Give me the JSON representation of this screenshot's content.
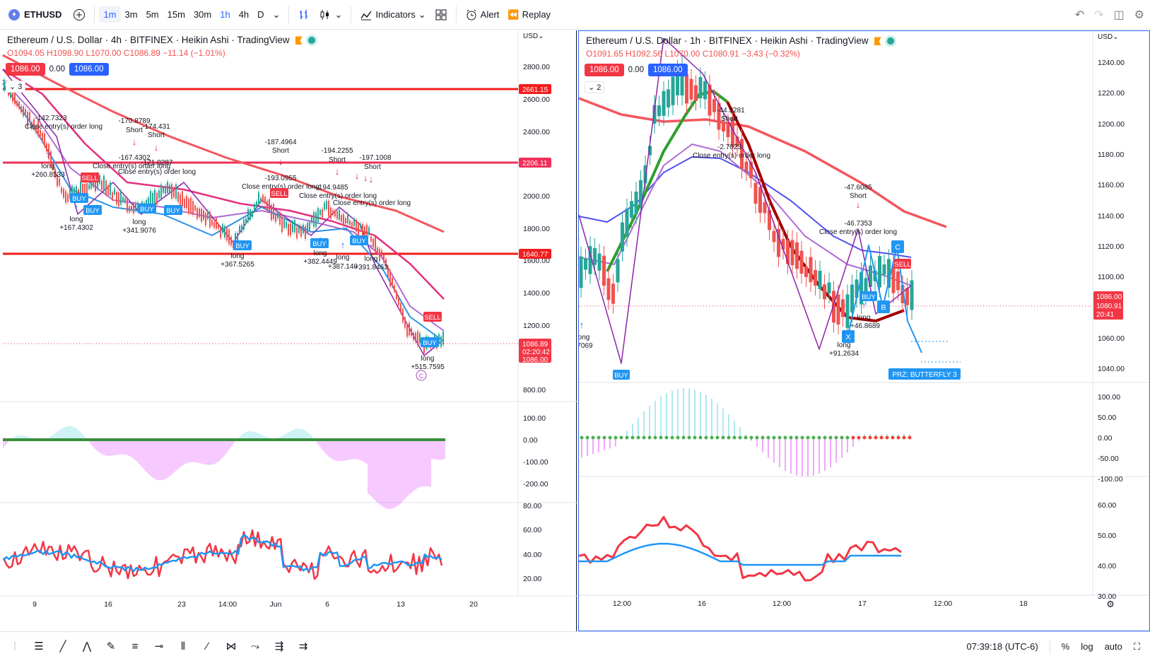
{
  "toolbar": {
    "symbol": "ETHUSD",
    "intervals": [
      "1m",
      "3m",
      "5m",
      "15m",
      "30m",
      "1h",
      "4h",
      "D"
    ],
    "active_intervals": [
      "1m",
      "1h"
    ],
    "indicators_label": "Indicators",
    "alert_label": "Alert",
    "replay_label": "Replay"
  },
  "left": {
    "title": "Ethereum / U.S. Dollar · 4h · BITFINEX · Heikin Ashi · TradingView",
    "ohlc": "O1094.05 H1098.90 L1070.00 C1086.89 −11.14 (−1.01%)",
    "sell_price": "1086.00",
    "spread": "0.00",
    "buy_price": "1086.00",
    "collapse_count": "3",
    "currency": "USD",
    "price_ticks": [
      "2800.00",
      "2600.00",
      "2400.00",
      "2200.00",
      "2000.00",
      "1800.00",
      "1600.00",
      "1400.00",
      "1200.00",
      "800.00"
    ],
    "level_tags": [
      "2661.15",
      "2206.11",
      "1640.77"
    ],
    "last_price_tag": "1086.89",
    "countdown": "02:20:42",
    "bid_tag": "1086.00",
    "osc1_ticks": [
      "100.00",
      "0.00",
      "-100.00",
      "-200.00"
    ],
    "osc2_ticks": [
      "80.00",
      "60.00",
      "40.00",
      "20.00"
    ],
    "time_ticks": [
      "9",
      "16",
      "23",
      "14:00",
      "Jun",
      "6",
      "13",
      "20"
    ],
    "annotations": [
      "-142.7323",
      "Close entry(s) order long",
      "long",
      "+260.8533",
      "-170.8789",
      "Short",
      "-174.431",
      "Short",
      "-167.4302",
      "Close entry(s) order long",
      "-171.0287",
      "Close entry(s) order long",
      "long",
      "+167.4302",
      "long",
      "+341.9076",
      "-187.4964",
      "Short",
      "-193.0955",
      "Close entry(s) order long",
      "-194.2255",
      "Short",
      "-194.9485",
      "-197.1008",
      "Short",
      "Close entry(s) order long",
      "Close entry(s) order long",
      "long",
      "+367.5265",
      "long",
      "+382.4449",
      "long",
      "+387.140",
      "long",
      "+391.8463",
      "long",
      "+515.7595"
    ],
    "signal_labels": [
      "SELL",
      "BUY",
      "BUY",
      "BUY",
      "BUY",
      "BUY",
      "SELL",
      "BUY",
      "BUY",
      "SELL",
      "BUY"
    ],
    "wave_label": "C"
  },
  "right": {
    "title": "Ethereum / U.S. Dollar · 1h · BITFINEX · Heikin Ashi · TradingView",
    "ohlc": "O1091.65 H1092.56 L1070.00 C1080.91 −3.43 (−0.32%)",
    "sell_price": "1086.00",
    "spread": "0.00",
    "buy_price": "1086.00",
    "collapse_count": "2",
    "currency": "USD",
    "price_ticks": [
      "1240.00",
      "1220.00",
      "1200.00",
      "1180.00",
      "1160.00",
      "1140.00",
      "1120.00",
      "1100.00",
      "1060.00",
      "1040.00"
    ],
    "last_price_tag": "1086.00",
    "last_close_tag": "1080.91",
    "countdown": "20:41",
    "osc1_ticks": [
      "100.00",
      "50.00",
      "0.00",
      "-50.00",
      "-100.00"
    ],
    "osc2_ticks": [
      "60.00",
      "50.00",
      "40.00",
      "30.00"
    ],
    "time_ticks": [
      "12:00",
      "16",
      "12:00",
      "17",
      "12:00",
      "18"
    ],
    "annotations": [
      "-44.5281",
      "Short",
      "-2.7023",
      "Close entry(s) order long",
      "-47.6085",
      "Short",
      "-46.7353",
      "Close entry(s) order long",
      "long",
      "+46.8689",
      "long",
      "+91.2634",
      "ong",
      ".7069"
    ],
    "pattern_labels": [
      "X",
      "B",
      "C"
    ],
    "signal_labels": [
      "BUY",
      "BUY",
      "SELL"
    ],
    "prz_label": "PRZ: BUTTERFLY 3"
  },
  "statusbar": {
    "time": "07:39:18 (UTC-6)",
    "percent_label": "%",
    "log_label": "log",
    "auto_label": "auto"
  }
}
